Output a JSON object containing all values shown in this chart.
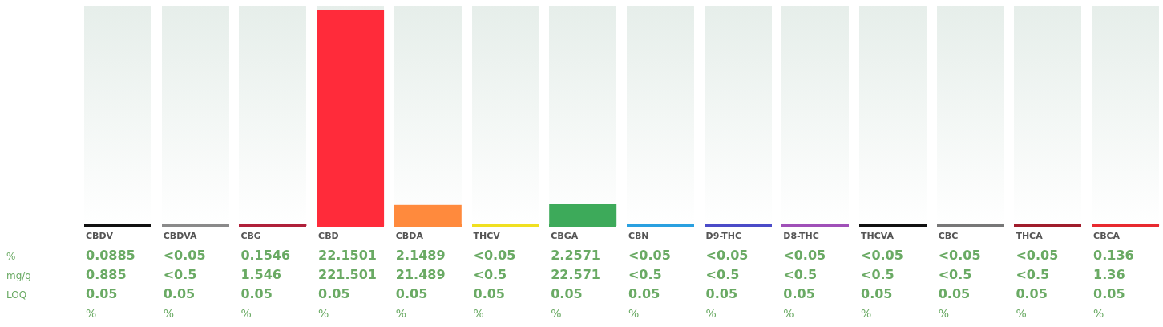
{
  "chart_data": {
    "type": "bar",
    "categories": [
      "CBDV",
      "CBDVA",
      "CBG",
      "CBD",
      "CBDA",
      "THCV",
      "CBGA",
      "CBN",
      "D9-THC",
      "D8-THC",
      "THCVA",
      "CBC",
      "THCA",
      "CBCA"
    ],
    "values": [
      0.0885,
      null,
      0.1546,
      22.1501,
      2.1489,
      null,
      2.2571,
      null,
      null,
      null,
      null,
      null,
      null,
      0.136
    ],
    "value_labels": [
      "0.0885",
      "<0.05",
      "0.1546",
      "22.1501",
      "2.1489",
      "<0.05",
      "2.2571",
      "<0.05",
      "<0.05",
      "<0.05",
      "<0.05",
      "<0.05",
      "<0.05",
      "0.136"
    ],
    "colors": [
      "#111111",
      "#8a8a8a",
      "#b0203a",
      "#ff2b3a",
      "#ff8a3d",
      "#f0e020",
      "#3daa5a",
      "#2aa0e0",
      "#4b4bc8",
      "#a050b8",
      "#111111",
      "#777777",
      "#a01c2c",
      "#e82a30"
    ],
    "annotations": [
      "%",
      "mg/g",
      "LOQ",
      "0.885",
      "<0.5",
      "1.546",
      "221.501",
      "21.489",
      "<0.5",
      "22.571",
      "<0.5",
      "<0.5",
      "<0.5",
      "<0.5",
      "<0.5",
      "<0.5",
      "1.36",
      "0.05",
      "0.05",
      "0.05",
      "0.05",
      "0.05",
      "0.05",
      "0.05",
      "0.05",
      "0.05",
      "0.05",
      "0.05",
      "0.05",
      "0.05",
      "0.05",
      "%",
      "%",
      "%",
      "%",
      "%",
      "%",
      "%",
      "%",
      "%",
      "%",
      "%",
      "%",
      "%",
      "%"
    ]
  }
}
